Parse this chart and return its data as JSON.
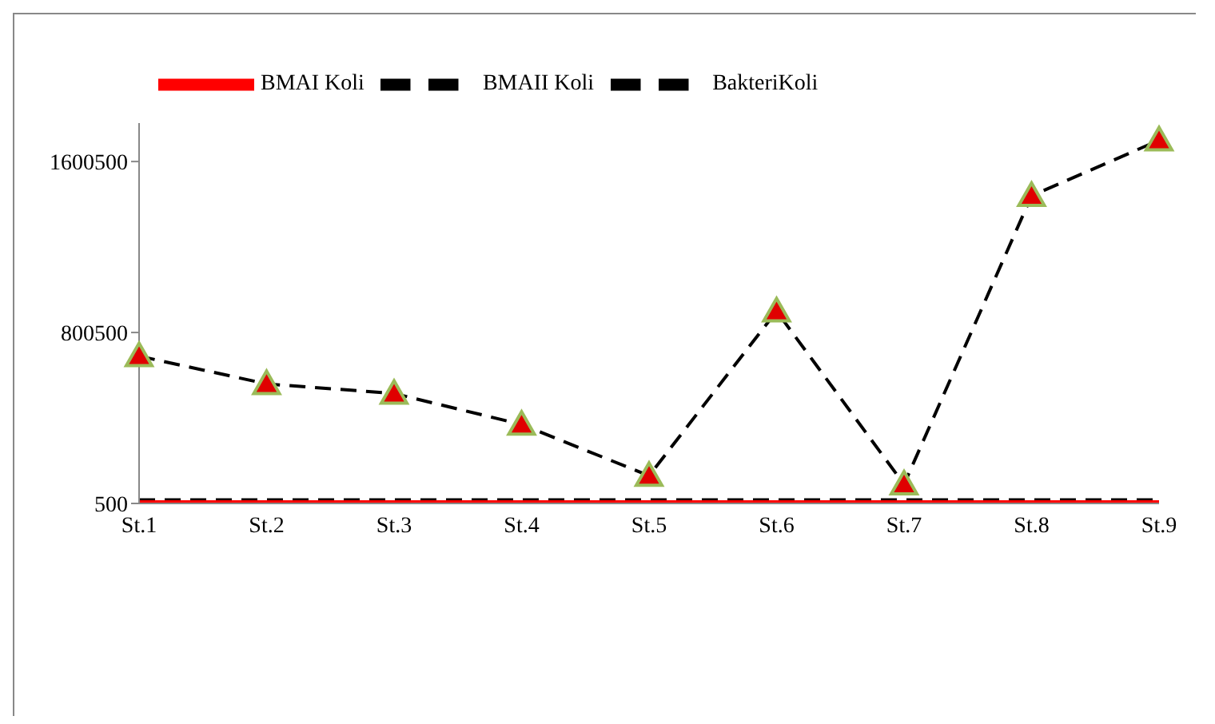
{
  "chart_data": {
    "type": "line",
    "categories": [
      "St.1",
      "St.2",
      "St.3",
      "St.4",
      "St.5",
      "St.6",
      "St.7",
      "St.8",
      "St.9"
    ],
    "series": [
      {
        "name": "BMAII Koli",
        "color": "#000000",
        "line_style": "dashed",
        "marker": "none",
        "values": [
          10000,
          10000,
          10000,
          10000,
          10000,
          10000,
          10000,
          10000,
          10000
        ]
      },
      {
        "name": "BakteriKoli",
        "color": "#000000",
        "line_style": "dashed",
        "marker": "triangle",
        "values": [
          690000,
          560000,
          515000,
          370000,
          130000,
          900000,
          90000,
          1440000,
          1700000
        ]
      },
      {
        "name": "BMAI Koli",
        "color": "#ff0000",
        "line_style": "solid",
        "marker": "none",
        "values": [
          500,
          500,
          500,
          500,
          500,
          500,
          500,
          500,
          500
        ]
      }
    ],
    "ylim": [
      500,
      1780500
    ],
    "yticks": [
      500,
      800500,
      1600500
    ],
    "grid": false,
    "legend": "top left"
  }
}
